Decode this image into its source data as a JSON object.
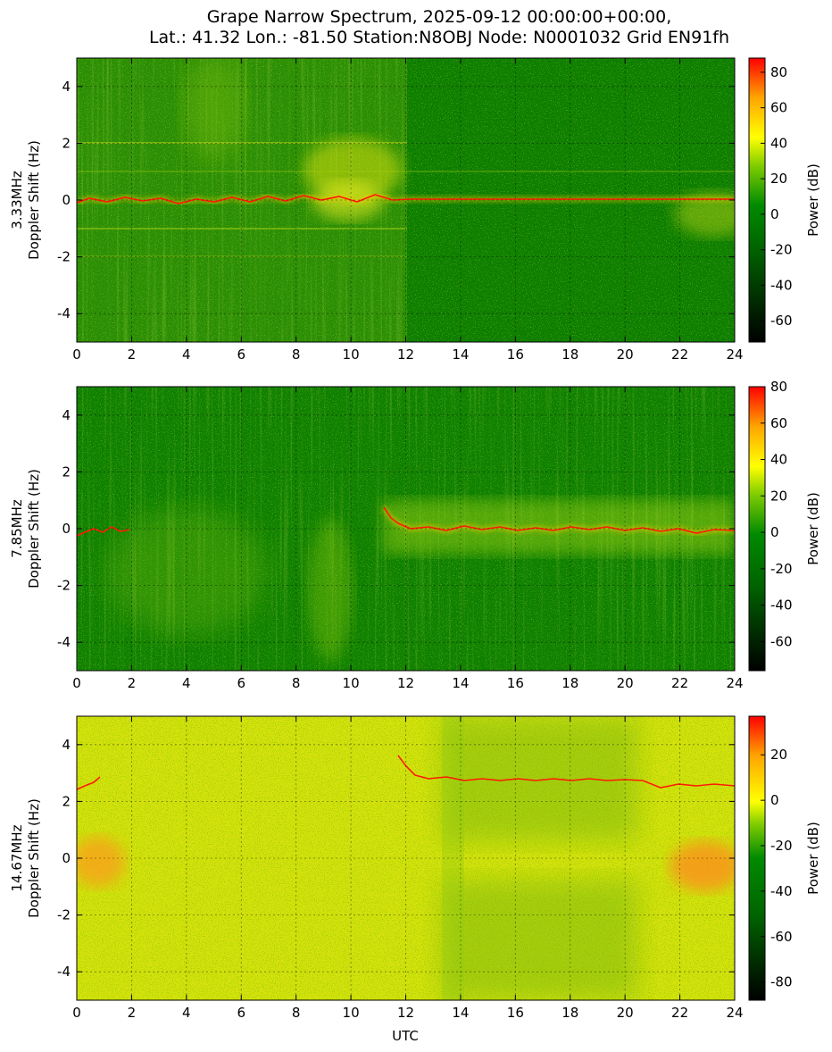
{
  "figure": {
    "title_line1": "Grape Narrow Spectrum, 2025-09-12 00:00:00+00:00,",
    "title_line2": "Lat.: 41.32 Lon.: -81.50 Station:N8OBJ Node: N0001032 Grid EN91fh",
    "xlabel": "UTC"
  },
  "chart_data": [
    {
      "type": "heatmap",
      "freq_label": "3.33MHz",
      "ylabel": "Doppler Shift (Hz)",
      "xlabel": "",
      "xlim": [
        0,
        24
      ],
      "ylim": [
        -5,
        5
      ],
      "xticks": [
        0,
        2,
        4,
        6,
        8,
        10,
        12,
        14,
        16,
        18,
        20,
        22,
        24
      ],
      "yticks": [
        -4,
        -2,
        0,
        2,
        4
      ],
      "colorbar_label": "Power (dB)",
      "colorbar_range": [
        -72,
        88
      ],
      "colorbar_ticks": [
        -60,
        -40,
        -20,
        0,
        20,
        40,
        60,
        80
      ],
      "colormap": [
        "#000000",
        "#007a00",
        "#ffff00",
        "#ff0000"
      ],
      "grid": true,
      "carrier_trace": {
        "x": [
          0,
          24
        ],
        "y": [
          0,
          0
        ],
        "note": "continuous red trace at 0 Hz with spread 0-12 UTC"
      }
    },
    {
      "type": "heatmap",
      "freq_label": "7.85MHz",
      "ylabel": "Doppler Shift (Hz)",
      "xlabel": "",
      "xlim": [
        0,
        24
      ],
      "ylim": [
        -5,
        5
      ],
      "xticks": [
        0,
        2,
        4,
        6,
        8,
        10,
        12,
        14,
        16,
        18,
        20,
        22,
        24
      ],
      "yticks": [
        -4,
        -2,
        0,
        2,
        4
      ],
      "colorbar_label": "Power (dB)",
      "colorbar_range": [
        -76,
        80
      ],
      "colorbar_ticks": [
        -60,
        -40,
        -20,
        0,
        20,
        40,
        60,
        80
      ],
      "colormap": [
        "#000000",
        "#007a00",
        "#ffff00",
        "#ff0000"
      ],
      "grid": true,
      "carrier_trace": {
        "segments": [
          [
            0,
            1.8
          ],
          [
            11.1,
            24
          ]
        ],
        "y": 0
      }
    },
    {
      "type": "heatmap",
      "freq_label": "14.67MHz",
      "ylabel": "Doppler Shift (Hz)",
      "xlabel": "UTC",
      "xlim": [
        0,
        24
      ],
      "ylim": [
        -5,
        5
      ],
      "xticks": [
        0,
        2,
        4,
        6,
        8,
        10,
        12,
        14,
        16,
        18,
        20,
        22,
        24
      ],
      "yticks": [
        -4,
        -2,
        0,
        2,
        4
      ],
      "colorbar_label": "Power (dB)",
      "colorbar_range": [
        -88,
        37
      ],
      "colorbar_ticks": [
        -80,
        -60,
        -40,
        -20,
        0,
        20
      ],
      "colormap": [
        "#000000",
        "#007a00",
        "#ffff00",
        "#ff0000"
      ],
      "grid": true,
      "carrier_trace": {
        "segments": [
          [
            0,
            0.9
          ],
          [
            11.7,
            24
          ]
        ],
        "y": 2.7
      }
    }
  ]
}
